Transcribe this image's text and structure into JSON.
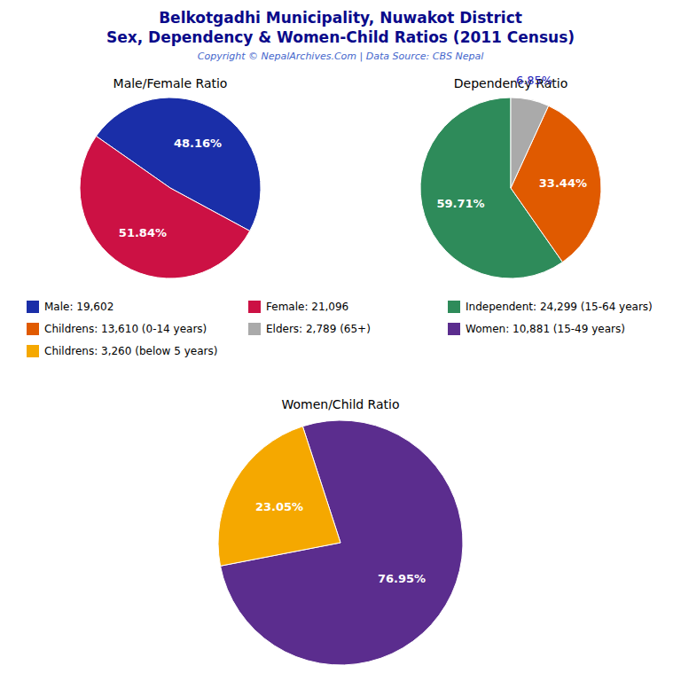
{
  "title": "Belkotgadhi Municipality, Nuwakot District",
  "subtitle": "Sex, Dependency & Women-Child Ratios (2011 Census)",
  "annotations": [
    "Copyright © NepalArchives.Com | Data Source: CBS Nepal"
  ],
  "chart_data": [
    {
      "type": "pie",
      "title": "Male/Female Ratio",
      "categories": [
        "Male: 19,602",
        "Female: 21,096"
      ],
      "values": [
        48.16,
        51.84
      ],
      "value_labels": [
        "48.16%",
        "51.84%"
      ],
      "colors": [
        "#1a2ea8",
        "#cc1144"
      ],
      "data_labels": true
    },
    {
      "type": "pie",
      "title": "Dependency Ratio",
      "categories": [
        "Independent: 24,299 (15-64 years)",
        "Childrens: 13,610 (0-14 years)",
        "Elders: 2,789 (65+)"
      ],
      "values": [
        59.71,
        33.44,
        6.85
      ],
      "value_labels": [
        "59.71%",
        "33.44%",
        "6.85%"
      ],
      "colors": [
        "#2e8b5a",
        "#e05a00",
        "#aaaaaa"
      ],
      "data_labels": true
    },
    {
      "type": "pie",
      "title": "Women/Child Ratio",
      "categories": [
        "Women: 10,881 (15-49 years)",
        "Childrens: 3,260 (below 5 years)"
      ],
      "values": [
        76.95,
        23.05
      ],
      "value_labels": [
        "76.95%",
        "23.05%"
      ],
      "colors": [
        "#5b2d8e",
        "#f5a800"
      ],
      "data_labels": true
    }
  ]
}
